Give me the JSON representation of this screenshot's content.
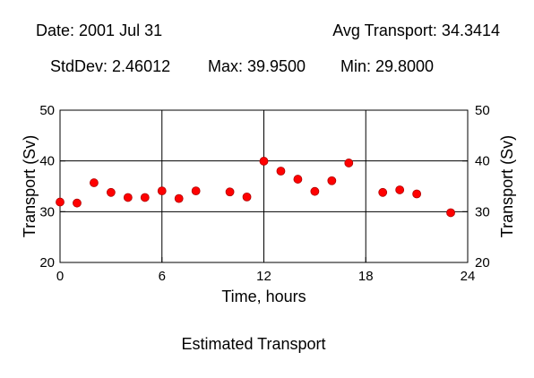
{
  "header": {
    "date_label": "Date: 2001 Jul 31",
    "avg_label": "Avg Transport: 34.3414",
    "stddev_label": "StdDev: 2.46012",
    "max_label": "Max: 39.9500",
    "min_label": "Min: 29.8000"
  },
  "caption": "Estimated Transport",
  "chart_data": {
    "type": "scatter",
    "title": "",
    "xlabel": "Time, hours",
    "ylabel": "Transport (Sv)",
    "ylabel_right": "Transport (Sv)",
    "xlim": [
      0,
      24
    ],
    "ylim": [
      20,
      50
    ],
    "x_ticks": [
      0,
      6,
      12,
      18,
      24
    ],
    "y_ticks": [
      20,
      30,
      40,
      50
    ],
    "grid": true,
    "marker_color": "#ff0000",
    "points": [
      {
        "x": 0,
        "y": 31.9
      },
      {
        "x": 1,
        "y": 31.7
      },
      {
        "x": 2,
        "y": 35.7
      },
      {
        "x": 3,
        "y": 33.8
      },
      {
        "x": 4,
        "y": 32.8
      },
      {
        "x": 5,
        "y": 32.8
      },
      {
        "x": 6,
        "y": 34.1
      },
      {
        "x": 7,
        "y": 32.6
      },
      {
        "x": 8,
        "y": 34.1
      },
      {
        "x": 10,
        "y": 33.9
      },
      {
        "x": 11,
        "y": 32.9
      },
      {
        "x": 12,
        "y": 39.95
      },
      {
        "x": 13,
        "y": 38.0
      },
      {
        "x": 14,
        "y": 36.4
      },
      {
        "x": 15,
        "y": 34.0
      },
      {
        "x": 16,
        "y": 36.1
      },
      {
        "x": 17,
        "y": 39.6
      },
      {
        "x": 19,
        "y": 33.8
      },
      {
        "x": 20,
        "y": 34.3
      },
      {
        "x": 21,
        "y": 33.5
      },
      {
        "x": 23,
        "y": 29.8
      }
    ]
  }
}
